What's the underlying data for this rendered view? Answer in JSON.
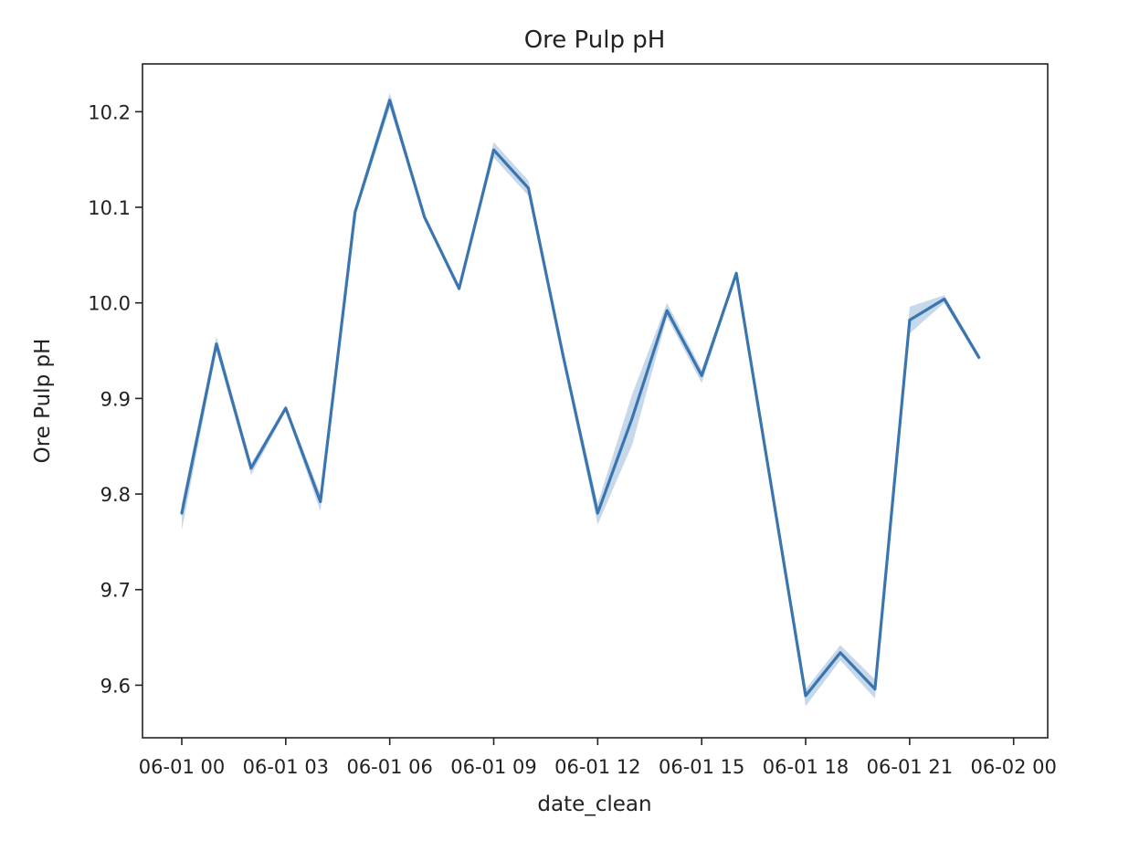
{
  "chart_data": {
    "type": "line",
    "title": "Ore Pulp pH",
    "xlabel": "date_clean",
    "ylabel": "Ore Pulp pH",
    "x_ticks": [
      {
        "time": "06-01 00:00",
        "label": "06-01 00"
      },
      {
        "time": "06-01 03:00",
        "label": "06-01 03"
      },
      {
        "time": "06-01 06:00",
        "label": "06-01 06"
      },
      {
        "time": "06-01 09:00",
        "label": "06-01 09"
      },
      {
        "time": "06-01 12:00",
        "label": "06-01 12"
      },
      {
        "time": "06-01 15:00",
        "label": "06-01 15"
      },
      {
        "time": "06-01 18:00",
        "label": "06-01 18"
      },
      {
        "time": "06-01 21:00",
        "label": "06-01 21"
      },
      {
        "time": "06-02 00:00",
        "label": "06-02 00"
      }
    ],
    "y_ticks": [
      9.6,
      9.7,
      9.8,
      9.9,
      10.0,
      10.1,
      10.2
    ],
    "xlim": [
      "05-31 22:52",
      "06-02 00:59"
    ],
    "ylim": [
      9.545,
      10.25
    ],
    "grid": false,
    "colors": {
      "line": "#3a75af",
      "band": "#a9c3de"
    },
    "series": [
      {
        "x": [
          "06-01 00:00",
          "06-01 01:00",
          "06-01 02:00",
          "06-01 03:00",
          "06-01 04:00",
          "06-01 05:00",
          "06-01 06:00",
          "06-01 07:00",
          "06-01 08:00",
          "06-01 09:00",
          "06-01 10:00",
          "06-01 11:00",
          "06-01 12:00",
          "06-01 13:00",
          "06-01 14:00",
          "06-01 15:00",
          "06-01 16:00",
          "06-01 17:00",
          "06-01 18:00",
          "06-01 19:00",
          "06-01 20:00",
          "06-01 21:00",
          "06-01 22:00",
          "06-01 23:00"
        ],
        "y": [
          9.78,
          9.957,
          9.827,
          9.89,
          9.792,
          10.095,
          10.212,
          10.09,
          10.015,
          10.16,
          10.12,
          9.945,
          9.78,
          9.88,
          9.992,
          9.924,
          10.031,
          9.81,
          9.589,
          9.634,
          9.596,
          9.982,
          10.004,
          9.943
        ],
        "y_low": [
          9.762,
          9.95,
          9.82,
          9.887,
          9.782,
          10.09,
          10.204,
          10.087,
          10.012,
          10.152,
          10.112,
          9.94,
          9.768,
          9.852,
          9.985,
          9.916,
          10.028,
          9.805,
          9.578,
          9.626,
          9.586,
          9.968,
          10.0,
          9.94
        ],
        "y_high": [
          9.79,
          9.965,
          9.832,
          9.893,
          9.8,
          10.1,
          10.22,
          10.093,
          10.018,
          10.168,
          10.128,
          9.95,
          9.79,
          9.905,
          10.0,
          9.93,
          10.034,
          9.815,
          9.596,
          9.642,
          9.606,
          9.996,
          10.008,
          9.946
        ]
      }
    ]
  }
}
